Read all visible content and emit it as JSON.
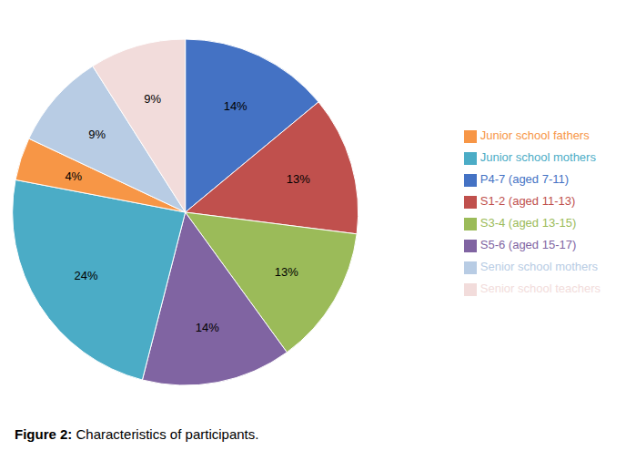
{
  "chart_data": {
    "type": "pie",
    "title": "Figure 2:",
    "subtitle": " Characteristics of participants.",
    "categories": [
      "P4-7 (aged 7-11)",
      "S1-2 (aged 11-13)",
      "S3-4 (aged 13-15)",
      "S5-6 (aged 15-17)",
      "Junior school mothers",
      "Junior school fathers",
      "Senior school mothers",
      "Senior school teachers"
    ],
    "values": [
      14,
      13,
      13,
      14,
      24,
      4,
      9,
      9
    ],
    "value_labels": [
      "14%",
      "13%",
      "13%",
      "14%",
      "24%",
      "4%",
      "9%",
      "9%"
    ],
    "colors": [
      "#4472C4",
      "#C0504D",
      "#9BBB59",
      "#8064A2",
      "#4BACC6",
      "#F79646",
      "#B8CCE4",
      "#F2DCDB"
    ],
    "data_labels": true,
    "legend": "right"
  }
}
